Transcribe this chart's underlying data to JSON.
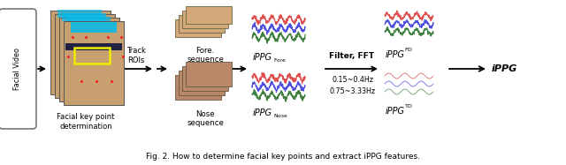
{
  "bg_color": "#ffffff",
  "wave_colors_sharp": [
    "#e05050",
    "#5050e0",
    "#408040"
  ],
  "wave_colors_smooth_top": [
    "#e05050",
    "#5050e0",
    "#408040"
  ],
  "wave_colors_smooth_bot": [
    "#e08080",
    "#8080e0",
    "#80a880"
  ],
  "facial_video": "Facial Video",
  "key_point": "Facial key point\ndetermination",
  "track_rois": "Track\nROIs",
  "fore_seq": "Fore.\nsequence",
  "nose_seq": "Nose\nsequence",
  "filter_fft": "Filter, FFT",
  "freq1": "0.15~0.4Hz",
  "freq2": "0.75~3.33Hz",
  "ippg_final": "iPPG",
  "caption": "Fig. 2. How to ...",
  "face_skin": "#c8a070",
  "fore_skin": "#d4a878",
  "nose_skin": "#b88868",
  "cyan_roi": "#00bbee",
  "yellow_roi": "#eeee00"
}
